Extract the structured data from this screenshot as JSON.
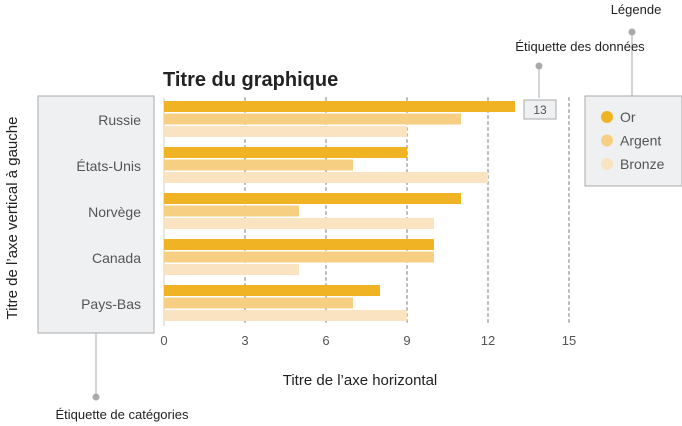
{
  "chart_data": {
    "type": "bar",
    "orientation": "horizontal",
    "title": "Titre du graphique",
    "xlabel": "Titre de l’axe horizontal",
    "ylabel": "Titre de l’axe vertical à gauche",
    "categories": [
      "Russie",
      "États-Unis",
      "Norvège",
      "Canada",
      "Pays-Bas"
    ],
    "series": [
      {
        "name": "Or",
        "color": "#f0b323",
        "values": [
          13,
          9,
          11,
          10,
          8
        ]
      },
      {
        "name": "Argent",
        "color": "#f7cf83",
        "values": [
          11,
          7,
          5,
          10,
          7
        ]
      },
      {
        "name": "Bronze",
        "color": "#f9e3c1",
        "values": [
          9,
          12,
          10,
          5,
          9
        ]
      }
    ],
    "xlim": [
      0,
      15
    ],
    "xticks": [
      0,
      3,
      6,
      9,
      12,
      15
    ],
    "grid": "vertical dotted",
    "legend_position": "right",
    "data_label": {
      "category": "Russie",
      "series": "Or",
      "text": "13"
    }
  },
  "annotations": {
    "legend": "Légende",
    "data_label": "Étiquette des données",
    "category_label": "Étiquette de catégories"
  },
  "colors": {
    "text": "#222222",
    "muted_text": "#555555",
    "gridline": "#bbbbbb",
    "annotation_box": "#eef0f2",
    "annotation_line": "#aaaaaa"
  }
}
